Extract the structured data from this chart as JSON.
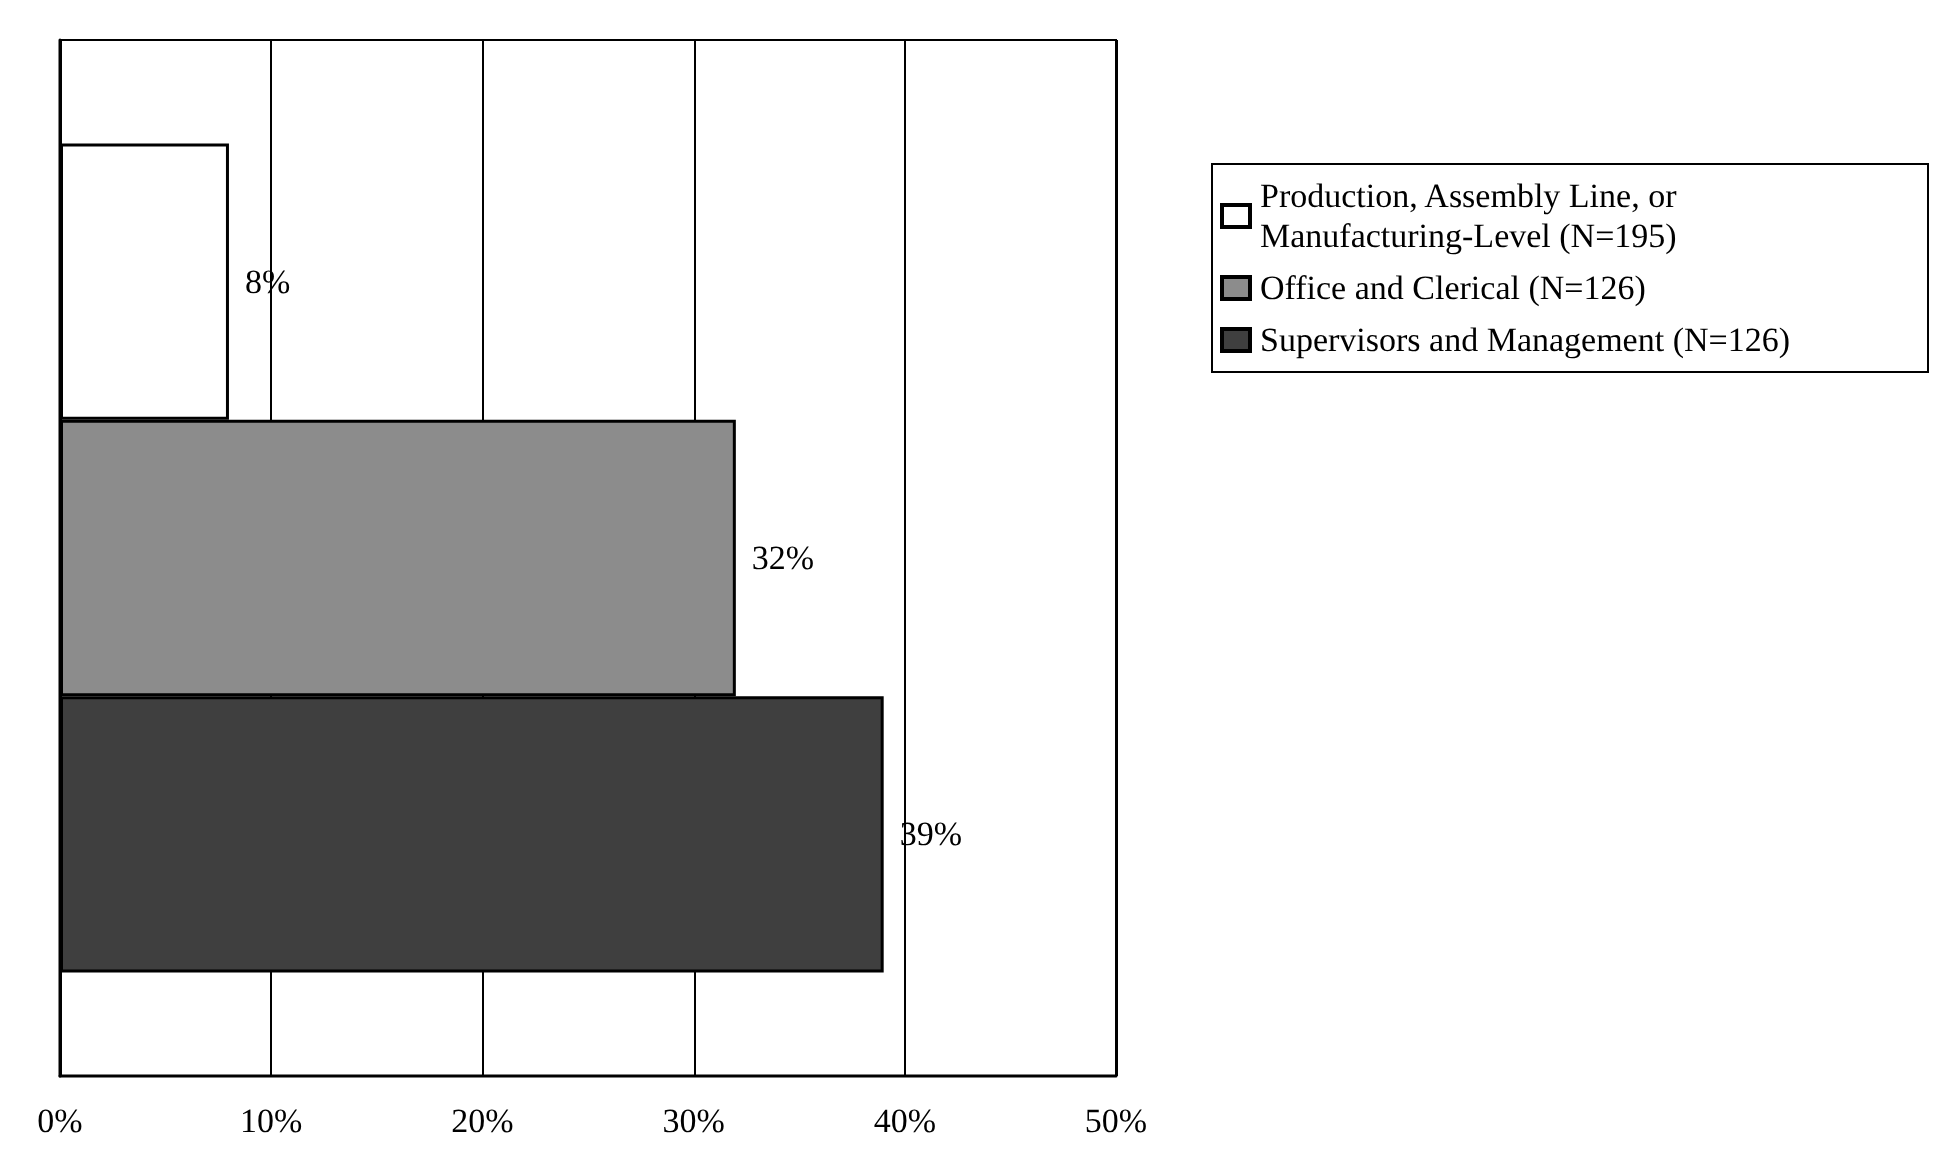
{
  "chart_data": {
    "type": "bar",
    "orientation": "horizontal",
    "categories": [
      null
    ],
    "series": [
      {
        "name": "Production, Assembly Line, or Manufacturing-Level (N=195)",
        "color": "#ffffff",
        "values": [
          8
        ],
        "value_labels": [
          "8%"
        ]
      },
      {
        "name": "Office and Clerical (N=126)",
        "color": "#8c8c8c",
        "values": [
          32
        ],
        "value_labels": [
          "32%"
        ]
      },
      {
        "name": "Supervisors and Management (N=126)",
        "color": "#3f3f3f",
        "values": [
          39
        ],
        "value_labels": [
          "39%"
        ]
      }
    ],
    "xlim": [
      0,
      50
    ],
    "xticks": [
      {
        "value": 0,
        "label": "0%"
      },
      {
        "value": 10,
        "label": "10%"
      },
      {
        "value": 20,
        "label": "20%"
      },
      {
        "value": 30,
        "label": "30%"
      },
      {
        "value": 40,
        "label": "40%"
      },
      {
        "value": 50,
        "label": "50%"
      }
    ],
    "grid": "x",
    "legend": "top right"
  }
}
